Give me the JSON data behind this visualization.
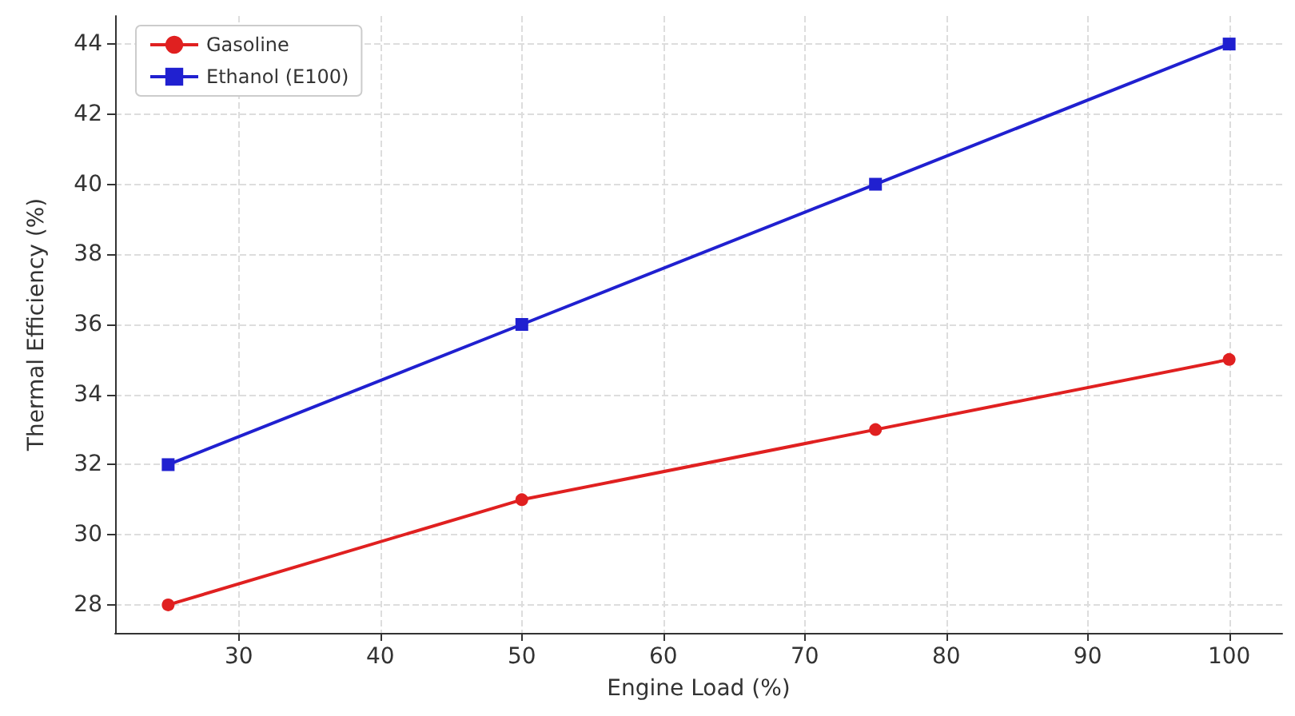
{
  "chart_data": {
    "type": "line",
    "xlabel": "Engine Load (%)",
    "ylabel": "Thermal Efficiency (%)",
    "x": [
      25,
      50,
      75,
      100
    ],
    "series": [
      {
        "name": "Gasoline",
        "color": "#e02020",
        "marker": "circle",
        "values": [
          28,
          31,
          33,
          35
        ]
      },
      {
        "name": "Ethanol (E100)",
        "color": "#2020d0",
        "marker": "square",
        "values": [
          32,
          36,
          40,
          44
        ]
      }
    ],
    "xlim": [
      21.25,
      103.75
    ],
    "xticks": [
      30,
      40,
      50,
      60,
      70,
      80,
      90,
      100
    ],
    "ylim": [
      27.2,
      44.8
    ],
    "yticks": [
      28,
      30,
      32,
      34,
      36,
      38,
      40,
      42,
      44
    ],
    "grid": true,
    "legend": "top left",
    "line_style": "solid"
  }
}
